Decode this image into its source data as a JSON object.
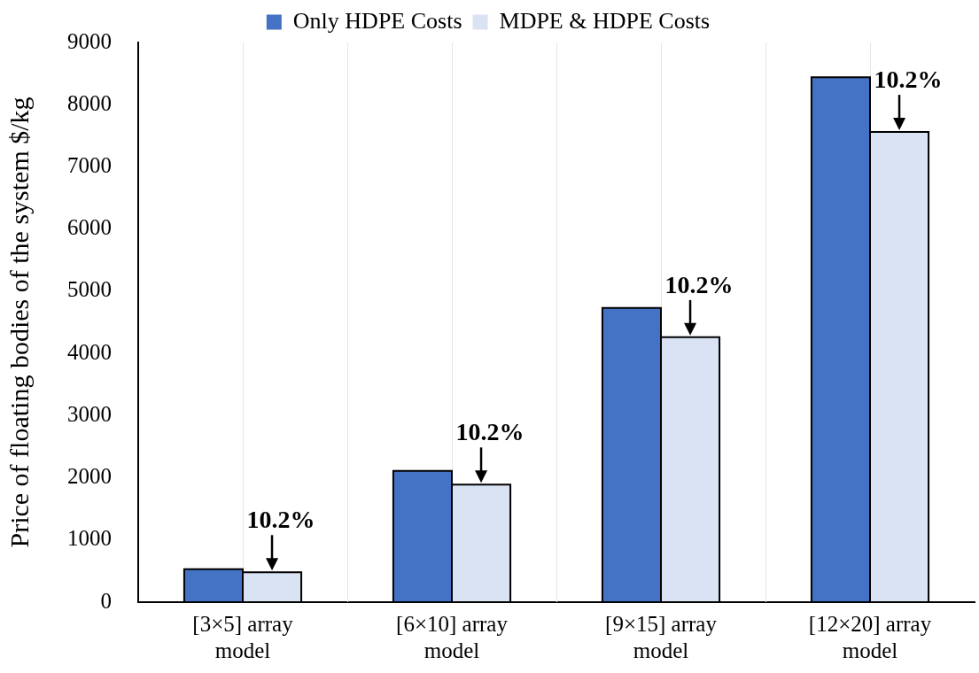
{
  "chart_data": {
    "type": "bar",
    "ylabel": "Price of floating bodies of the system $/kg",
    "categories": [
      "[3×5] array model",
      "[6×10] array model",
      "[9×15] array model",
      "[12×20] array model"
    ],
    "series": [
      {
        "name": "Only HDPE Costs",
        "color": "#4472c4",
        "values": [
          530,
          2110,
          4730,
          8440
        ]
      },
      {
        "name": "MDPE & HDPE Costs",
        "color": "#dae3f3",
        "values": [
          480,
          1890,
          4260,
          7560
        ]
      }
    ],
    "ylim": [
      0,
      9000
    ],
    "yticks": [
      0,
      1000,
      2000,
      3000,
      4000,
      5000,
      6000,
      7000,
      8000,
      9000
    ],
    "grid": "x",
    "legend": "top",
    "annotations": [
      {
        "text": "10.2%",
        "x": "[3×5] array model",
        "y": 480
      },
      {
        "text": "10.2%",
        "x": "[6×10] array model",
        "y": 1890
      },
      {
        "text": "10.2%",
        "x": "[9×15] array model",
        "y": 4260
      },
      {
        "text": "10.2%",
        "x": "[12×20] array model",
        "y": 7560
      }
    ]
  }
}
